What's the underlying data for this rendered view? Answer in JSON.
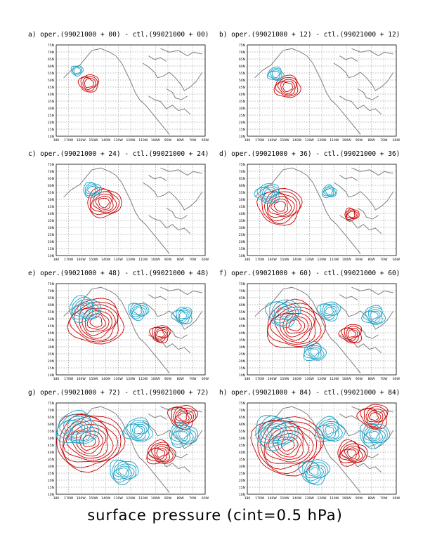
{
  "figure": {
    "caption": "surface pressure (cint=0.5 hPa)",
    "colors": {
      "positive": "#cc0000",
      "negative": "#1aa3c8",
      "coast": "#808080",
      "grid": "#555555"
    },
    "lat_labels": [
      "75N",
      "70N",
      "65N",
      "60N",
      "55N",
      "50N",
      "45N",
      "40N",
      "35N",
      "30N",
      "25N",
      "20N",
      "15N",
      "10N"
    ],
    "lon_labels": [
      "180",
      "170W",
      "160W",
      "150W",
      "140W",
      "130W",
      "120W",
      "110W",
      "100W",
      "90W",
      "80W",
      "70W",
      "60W"
    ]
  },
  "panels": [
    {
      "id": "a",
      "title": "a) oper.(99021000 + 00) - ctl.(99021000 + 00)",
      "intensity": 0.2
    },
    {
      "id": "b",
      "title": "b) oper.(99021000 + 12) - ctl.(99021000 + 12)",
      "intensity": 0.3
    },
    {
      "id": "c",
      "title": "c) oper.(99021000 + 24) - ctl.(99021000 + 24)",
      "intensity": 0.45
    },
    {
      "id": "d",
      "title": "d) oper.(99021000 + 36) - ctl.(99021000 + 36)",
      "intensity": 0.6
    },
    {
      "id": "e",
      "title": "e) oper.(99021000 + 48) - ctl.(99021000 + 48)",
      "intensity": 0.75
    },
    {
      "id": "f",
      "title": "f) oper.(99021000 + 60) - ctl.(99021000 + 60)",
      "intensity": 0.85
    },
    {
      "id": "g",
      "title": "g) oper.(99021000 + 72) - ctl.(99021000 + 72)",
      "intensity": 0.95
    },
    {
      "id": "h",
      "title": "h) oper.(99021000 + 84) - ctl.(99021000 + 84)",
      "intensity": 1.0
    }
  ]
}
